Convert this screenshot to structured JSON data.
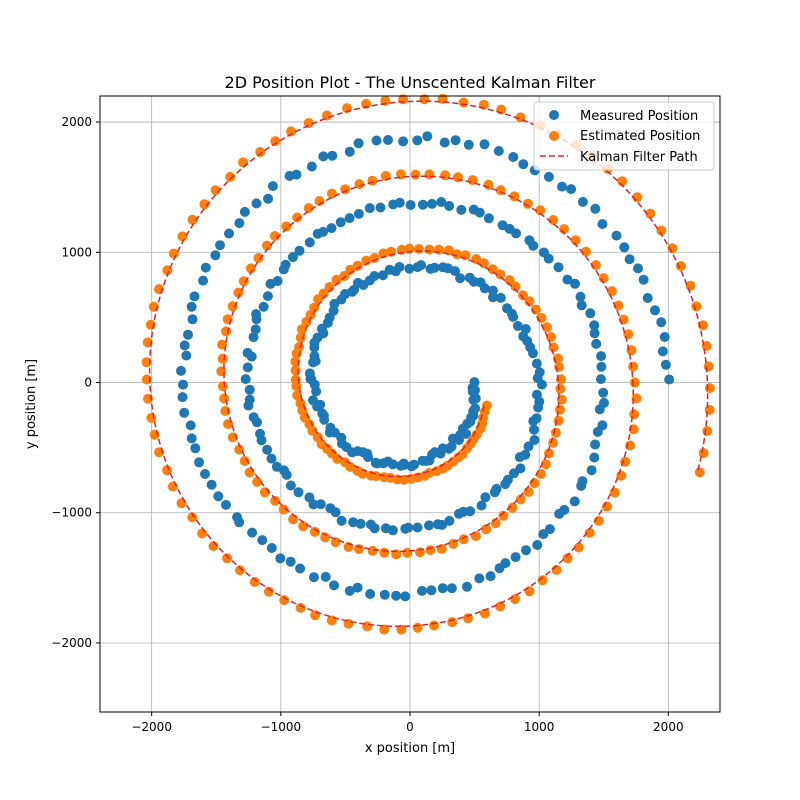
{
  "chart_data": {
    "type": "scatter",
    "title": "2D Position Plot - The Unscented Kalman Filter",
    "xlabel": "x position [m]",
    "ylabel": "y position [m]",
    "xlim": [
      -2400,
      2400
    ],
    "ylim": [
      -2530,
      2200
    ],
    "xticks": [
      -2000,
      -1000,
      0,
      1000,
      2000
    ],
    "yticks": [
      -2000,
      -1000,
      0,
      1000,
      2000
    ],
    "tick_labels_x": [
      "−2000",
      "−1000",
      "0",
      "1000",
      "2000"
    ],
    "tick_labels_y": [
      "−2000",
      "−1000",
      "0",
      "1000",
      "2000"
    ],
    "grid": true,
    "legend": "top-right",
    "series": [
      {
        "name": "Measured Position",
        "kind": "scatter",
        "color": "#1f77b4",
        "spiral": {
          "r_start": 500,
          "r_end": 2000,
          "turns": 3,
          "direction": "clockwise",
          "points": 330,
          "noise": 25
        }
      },
      {
        "name": "Estimated Position",
        "kind": "scatter",
        "color": "#ff7f0e",
        "spiral": {
          "r_start": 620,
          "r_end": 2350,
          "turns": 3,
          "direction": "clockwise",
          "points": 270,
          "noise": 8,
          "phase_offset": 0.3
        }
      },
      {
        "name": "Kalman Filter Path",
        "kind": "line",
        "color": "#d62728",
        "dash": true,
        "spiral": {
          "r_start": 600,
          "r_end": 2330,
          "turns": 3,
          "direction": "clockwise",
          "points": 600,
          "noise": 0,
          "phase_offset": 0.3
        }
      }
    ]
  },
  "legend": {
    "items": [
      {
        "label": "Measured Position",
        "color": "#1f77b4",
        "kind": "dot"
      },
      {
        "label": "Estimated Position",
        "color": "#ff7f0e",
        "kind": "dot"
      },
      {
        "label": "Kalman Filter Path",
        "color": "#d62728",
        "kind": "dash"
      }
    ]
  }
}
